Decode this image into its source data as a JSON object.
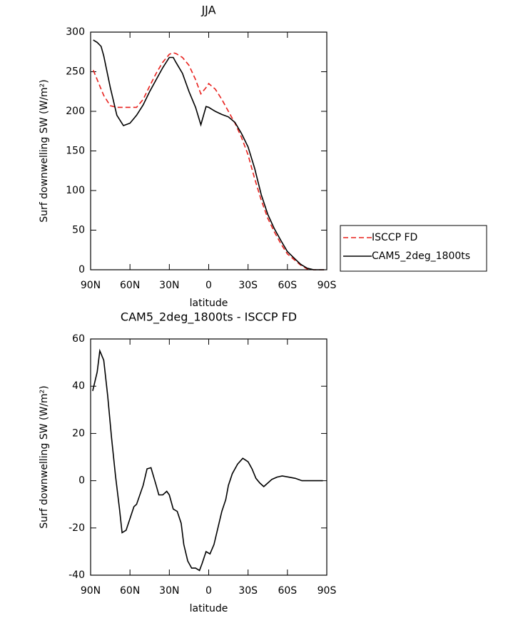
{
  "chart_data": [
    {
      "type": "line",
      "title": "JJA",
      "xlabel": "latitude",
      "ylabel": "Surf downwelling SW (W/m²)",
      "x": [
        88,
        85,
        82,
        80,
        75,
        70,
        65,
        60,
        55,
        50,
        45,
        40,
        35,
        30,
        27,
        25,
        20,
        15,
        10,
        6,
        2,
        0,
        -5,
        -10,
        -15,
        -20,
        -25,
        -30,
        -35,
        -40,
        -45,
        -50,
        -55,
        -60,
        -65,
        -70,
        -75,
        -80,
        -85,
        -88
      ],
      "series": [
        {
          "name": "ISCCP FD",
          "color": "#e8201c",
          "line_style": "dashed",
          "values": [
            252,
            240,
            228,
            220,
            207,
            205,
            205,
            205,
            205,
            215,
            232,
            248,
            262,
            272,
            274,
            273,
            268,
            258,
            240,
            222,
            230,
            235,
            228,
            215,
            200,
            185,
            167,
            145,
            115,
            88,
            65,
            48,
            33,
            20,
            13,
            6,
            1,
            0,
            0,
            0
          ]
        },
        {
          "name": "CAM5_2deg_1800ts",
          "color": "#000000",
          "line_style": "solid",
          "values": [
            290,
            287,
            282,
            270,
            230,
            195,
            182,
            185,
            195,
            208,
            225,
            240,
            255,
            268,
            268,
            262,
            248,
            225,
            205,
            183,
            206,
            205,
            200,
            196,
            193,
            186,
            172,
            155,
            128,
            95,
            70,
            52,
            37,
            23,
            15,
            7,
            2,
            0,
            0,
            0
          ]
        }
      ],
      "xlim": [
        90,
        -90
      ],
      "xticks": [
        {
          "value": 90,
          "label": "90N"
        },
        {
          "value": 60,
          "label": "60N"
        },
        {
          "value": 30,
          "label": "30N"
        },
        0,
        {
          "value": -30,
          "label": "30S"
        },
        {
          "value": -60,
          "label": "60S"
        },
        {
          "value": -90,
          "label": "90S"
        }
      ],
      "ylim": [
        0,
        300
      ],
      "yticks": [
        0,
        50,
        100,
        150,
        200,
        250,
        300
      ],
      "legend": "right"
    },
    {
      "type": "line",
      "title": "CAM5_2deg_1800ts - ISCCP FD",
      "xlabel": "latitude",
      "ylabel": "Surf downwelling SW (W/m²)",
      "x": [
        88.4,
        85,
        83,
        80,
        77,
        74,
        71,
        68,
        66,
        63,
        60,
        57,
        55,
        50,
        47,
        44,
        40,
        38,
        35,
        32,
        30,
        27,
        24,
        21,
        19,
        16,
        13,
        10,
        7,
        5,
        2,
        -1,
        -4,
        -7,
        -10,
        -13,
        -15,
        -18,
        -22,
        -26,
        -30,
        -33,
        -36,
        -39,
        -42,
        -45,
        -48,
        -52,
        -56,
        -61,
        -66,
        -71,
        -76,
        -82,
        -87
      ],
      "values": [
        38,
        46,
        55,
        51,
        36,
        18,
        2,
        -12,
        -22,
        -21,
        -16,
        -11,
        -10,
        -2,
        5,
        5.5,
        -2,
        -6,
        -6,
        -4.5,
        -6,
        -12,
        -13,
        -18,
        -27,
        -34,
        -37,
        -37,
        -38,
        -35,
        -30,
        -31,
        -27,
        -20,
        -13,
        -8,
        -2,
        3,
        7,
        9.5,
        8,
        5,
        1,
        -1,
        -2.5,
        -1,
        0.5,
        1.5,
        2,
        1.5,
        1,
        0,
        0,
        0,
        0
      ],
      "color": "#000000",
      "xlim": [
        90,
        -90
      ],
      "xticks": [
        {
          "value": 90,
          "label": "90N"
        },
        {
          "value": 60,
          "label": "60N"
        },
        {
          "value": 30,
          "label": "30N"
        },
        0,
        {
          "value": -30,
          "label": "30S"
        },
        {
          "value": -60,
          "label": "60S"
        },
        {
          "value": -90,
          "label": "90S"
        }
      ],
      "ylim": [
        -40,
        60
      ],
      "yticks": [
        -40,
        -20,
        0,
        20,
        40,
        60
      ]
    }
  ]
}
